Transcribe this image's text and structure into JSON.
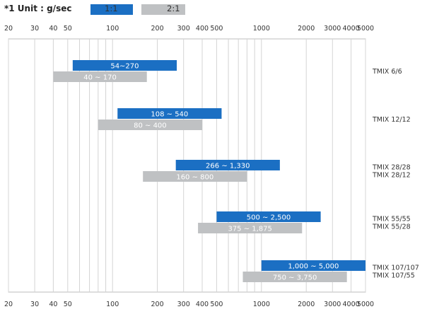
{
  "legend": {
    "unit_note": "*1 Unit : g/sec",
    "entries": [
      {
        "label": "1:1",
        "color": "#1b6fc3"
      },
      {
        "label": "2:1",
        "color": "#bfc1c3"
      }
    ]
  },
  "chart_data": {
    "type": "bar",
    "orientation": "horizontal-range",
    "x_scale": "log",
    "xlim": [
      20,
      5000
    ],
    "x_ticks": [
      20,
      30,
      40,
      50,
      100,
      200,
      300,
      400,
      500,
      1000,
      2000,
      3000,
      4000,
      5000
    ],
    "x_tick_labels": [
      "20",
      "30",
      "40",
      "50",
      "100",
      "200",
      "300",
      "400",
      "500",
      "1000",
      "2000",
      "3000",
      "4000",
      "5000"
    ],
    "grid": true,
    "categories": [
      "TMIX 6/6",
      "TMIX 12/12",
      "TMIX 28/28\nTMIX 28/12",
      "TMIX 55/55\nTMIX 55/28",
      "TMIX 107/107\nTMIX 107/55"
    ],
    "series": [
      {
        "name": "1:1",
        "color": "#1b6fc3",
        "ranges": [
          [
            54,
            270
          ],
          [
            108,
            540
          ],
          [
            266,
            1330
          ],
          [
            500,
            2500
          ],
          [
            1000,
            5000
          ]
        ],
        "labels": [
          "54~270",
          "108 ~ 540",
          "266 ~ 1,330",
          "500 ~ 2,500",
          "1,000 ~ 5,000"
        ]
      },
      {
        "name": "2:1",
        "color": "#bfc1c3",
        "ranges": [
          [
            40,
            170
          ],
          [
            80,
            400
          ],
          [
            160,
            800
          ],
          [
            375,
            1875
          ],
          [
            750,
            3750
          ]
        ],
        "labels": [
          "40 ~ 170",
          "80 ~ 400",
          "160 ~ 800",
          "375 ~ 1,875",
          "750 ~ 3,750"
        ]
      }
    ]
  }
}
